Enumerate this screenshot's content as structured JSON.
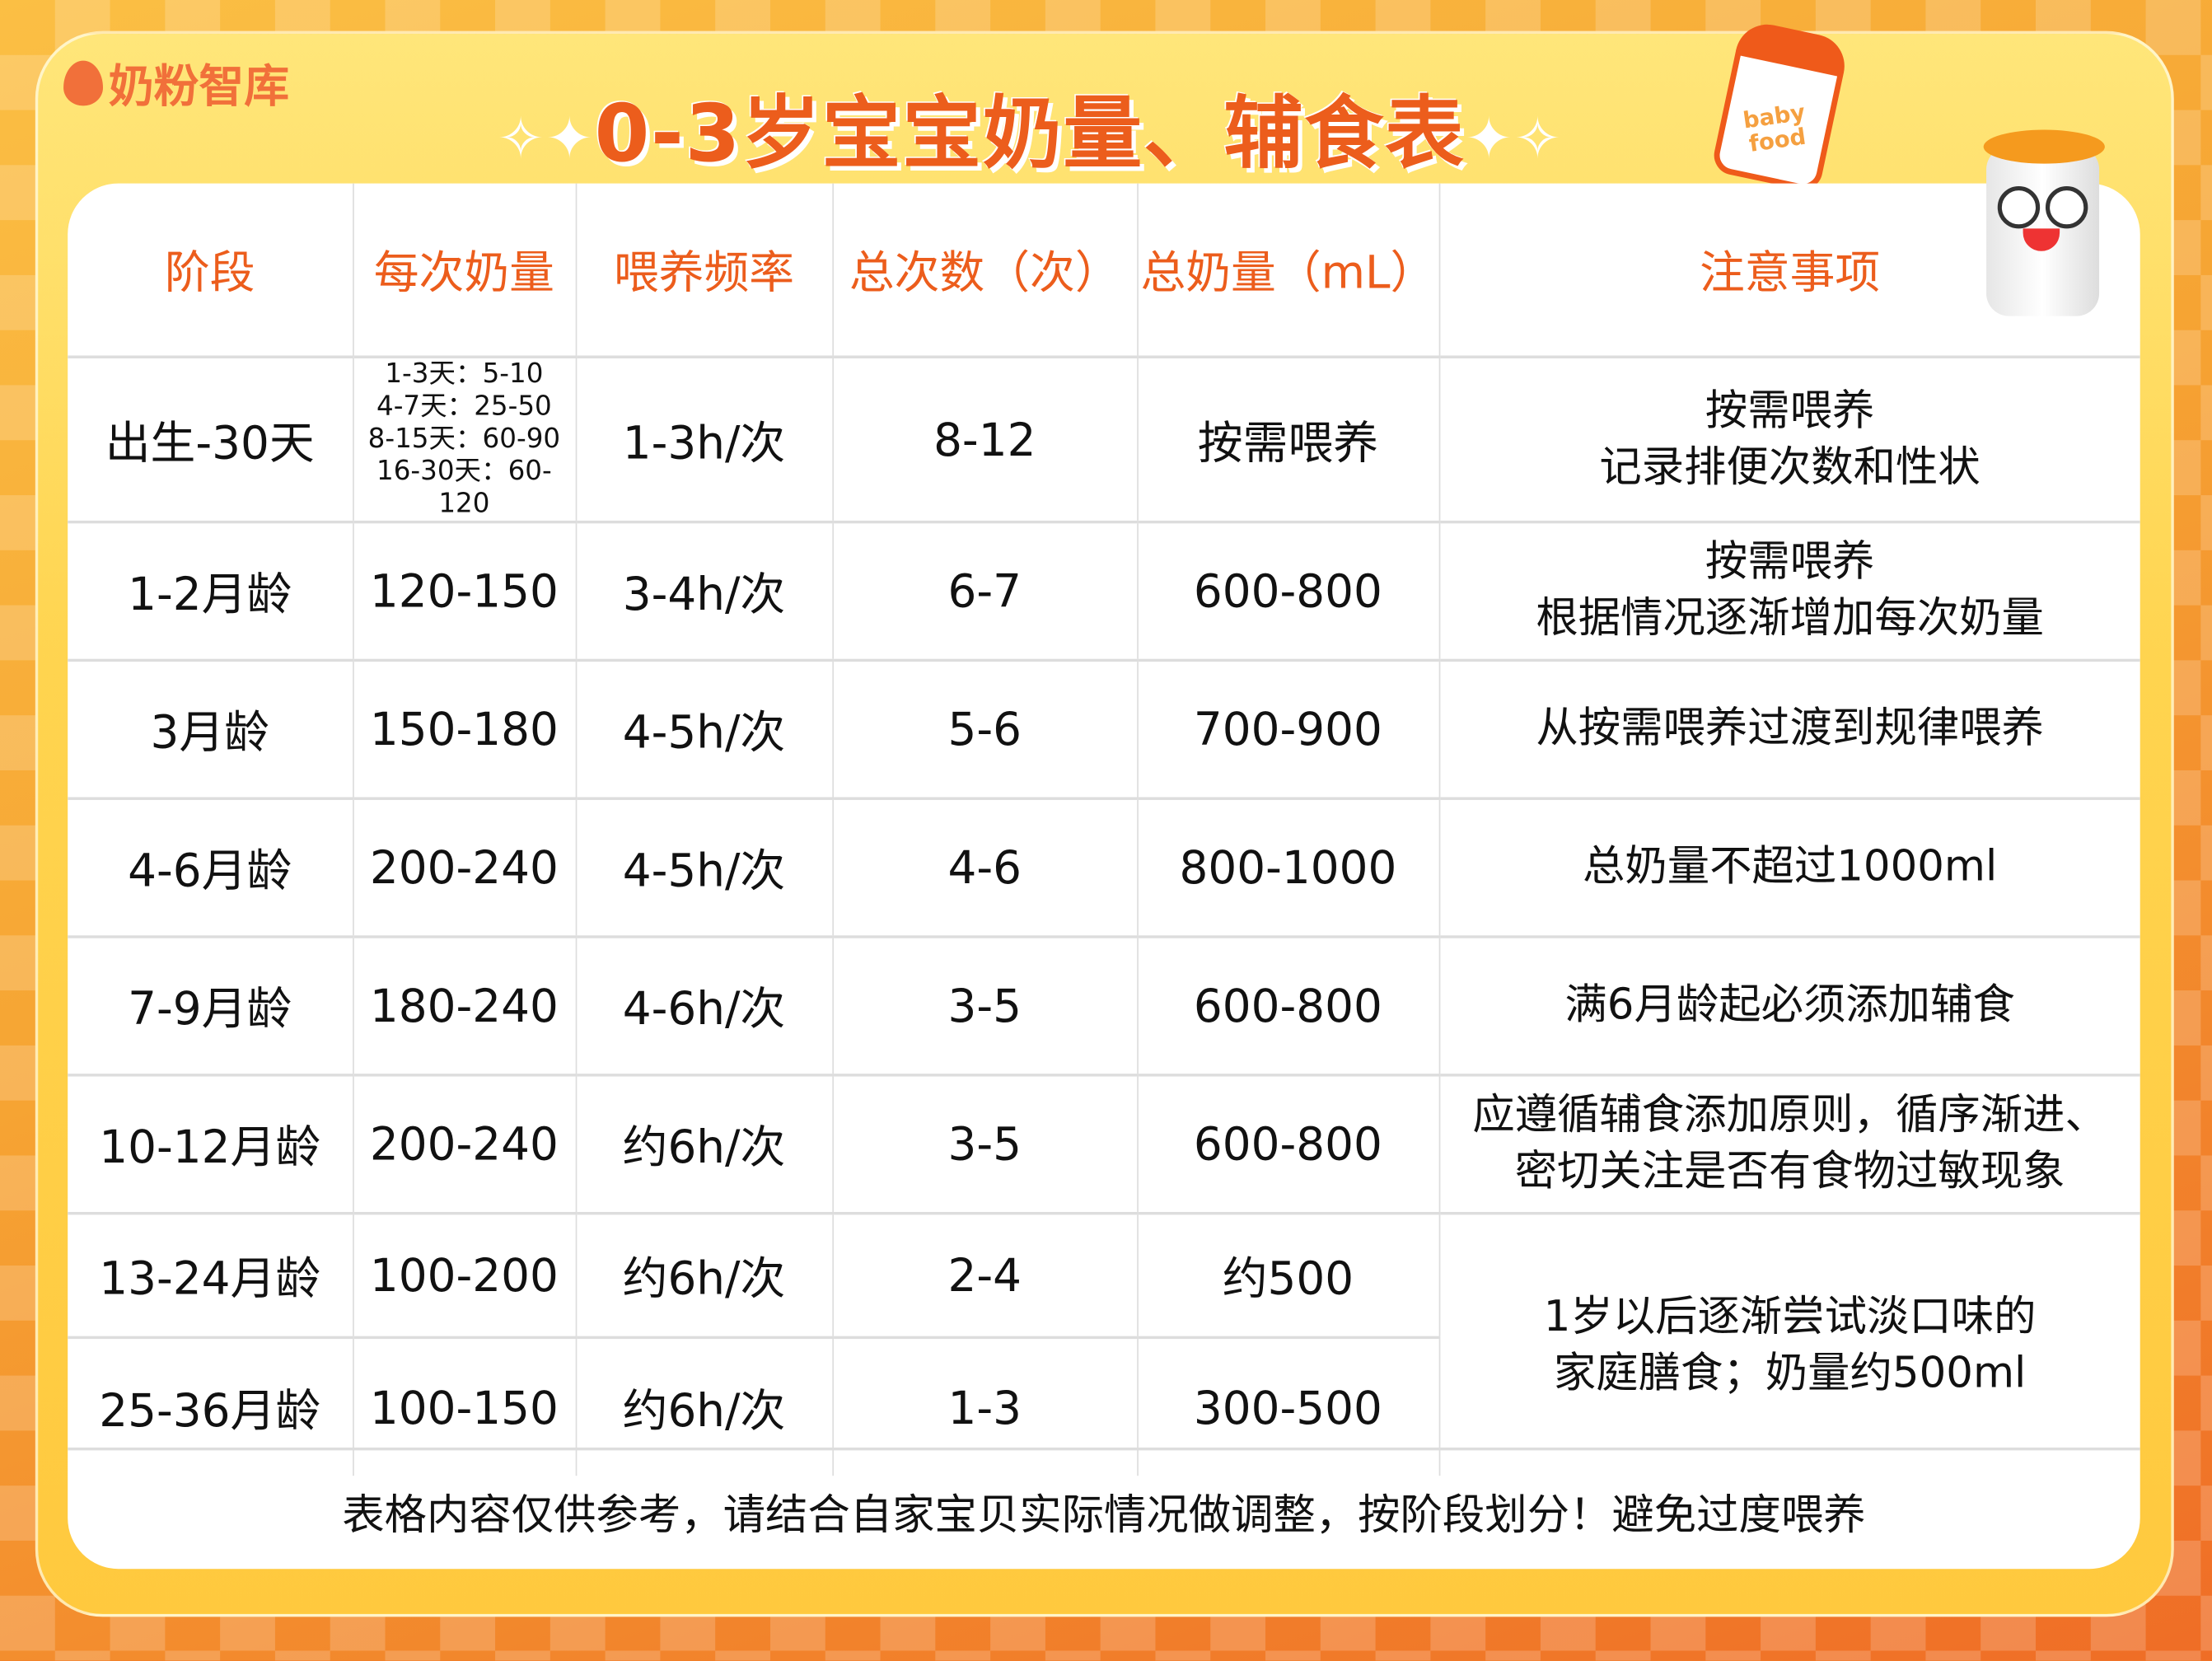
{
  "brand": {
    "logo_text": "奶粉智库"
  },
  "title": "0-3岁宝宝奶量、辅食表",
  "decor": {
    "can_label": "baby food"
  },
  "table": {
    "headers": [
      "阶段",
      "每次奶量",
      "喂养频率",
      "总次数（次）",
      "总奶量（mL）",
      "注意事项"
    ],
    "rows": [
      {
        "stage": "出生-30天",
        "amount_lines": [
          "1-3天：5-10",
          "4-7天：25-50",
          "8-15天：60-90",
          "16-30天：60-120"
        ],
        "freq": "1-3h/次",
        "count": "8-12",
        "total": "按需喂养",
        "note_lines": [
          "按需喂养",
          "记录排便次数和性状"
        ]
      },
      {
        "stage": "1-2月龄",
        "amount": "120-150",
        "freq": "3-4h/次",
        "count": "6-7",
        "total": "600-800",
        "note_lines": [
          "按需喂养",
          "根据情况逐渐增加每次奶量"
        ]
      },
      {
        "stage": "3月龄",
        "amount": "150-180",
        "freq": "4-5h/次",
        "count": "5-6",
        "total": "700-900",
        "note_lines": [
          "从按需喂养过渡到规律喂养"
        ]
      },
      {
        "stage": "4-6月龄",
        "amount": "200-240",
        "freq": "4-5h/次",
        "count": "4-6",
        "total": "800-1000",
        "note_lines": [
          "总奶量不超过1000ml"
        ]
      },
      {
        "stage": "7-9月龄",
        "amount": "180-240",
        "freq": "4-6h/次",
        "count": "3-5",
        "total": "600-800",
        "note_lines": [
          "满6月龄起必须添加辅食"
        ]
      },
      {
        "stage": "10-12月龄",
        "amount": "200-240",
        "freq": "约6h/次",
        "count": "3-5",
        "total": "600-800",
        "note_lines": [
          "应遵循辅食添加原则，循序渐进、",
          "密切关注是否有食物过敏现象"
        ]
      },
      {
        "stage": "13-24月龄",
        "amount": "100-200",
        "freq": "约6h/次",
        "count": "2-4",
        "total": "约500",
        "note_lines": [
          "1岁以后逐渐尝试淡口味的",
          "家庭膳食；奶量约500ml"
        ]
      },
      {
        "stage": "25-36月龄",
        "amount": "100-150",
        "freq": "约6h/次",
        "count": "1-3",
        "total": "300-500"
      }
    ]
  },
  "footer": "表格内容仅供参考，请结合自家宝贝实际情况做调整，按阶段划分！避免过度喂养",
  "colors": {
    "accent": "#ec5d1c",
    "background": "#ffd44f"
  }
}
